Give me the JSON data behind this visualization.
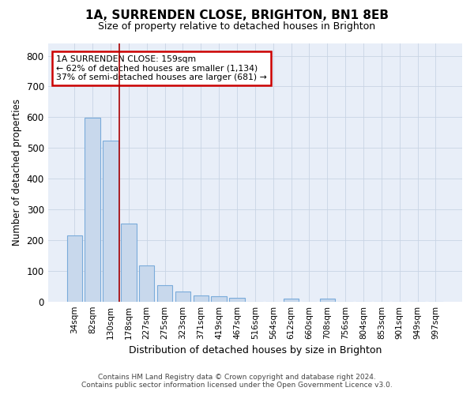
{
  "title": "1A, SURRENDEN CLOSE, BRIGHTON, BN1 8EB",
  "subtitle": "Size of property relative to detached houses in Brighton",
  "xlabel": "Distribution of detached houses by size in Brighton",
  "ylabel": "Number of detached properties",
  "footer_line1": "Contains HM Land Registry data © Crown copyright and database right 2024.",
  "footer_line2": "Contains public sector information licensed under the Open Government Licence v3.0.",
  "categories": [
    "34sqm",
    "82sqm",
    "130sqm",
    "178sqm",
    "227sqm",
    "275sqm",
    "323sqm",
    "371sqm",
    "419sqm",
    "467sqm",
    "516sqm",
    "564sqm",
    "612sqm",
    "660sqm",
    "708sqm",
    "756sqm",
    "804sqm",
    "853sqm",
    "901sqm",
    "949sqm",
    "997sqm"
  ],
  "values": [
    215,
    598,
    525,
    255,
    118,
    52,
    33,
    20,
    16,
    11,
    0,
    0,
    10,
    0,
    10,
    0,
    0,
    0,
    0,
    0,
    0
  ],
  "bar_color": "#c8d8ec",
  "bar_edgecolor": "#7aabda",
  "grid_color": "#c8d4e4",
  "bg_color": "#ffffff",
  "plot_bg_color": "#e8eef8",
  "vline_x": 2.5,
  "vline_color": "#aa0000",
  "annotation_text": "1A SURRENDEN CLOSE: 159sqm\n← 62% of detached houses are smaller (1,134)\n37% of semi-detached houses are larger (681) →",
  "annotation_box_facecolor": "#ffffff",
  "annotation_box_edgecolor": "#cc0000",
  "ylim": [
    0,
    840
  ],
  "yticks": [
    0,
    100,
    200,
    300,
    400,
    500,
    600,
    700,
    800
  ]
}
